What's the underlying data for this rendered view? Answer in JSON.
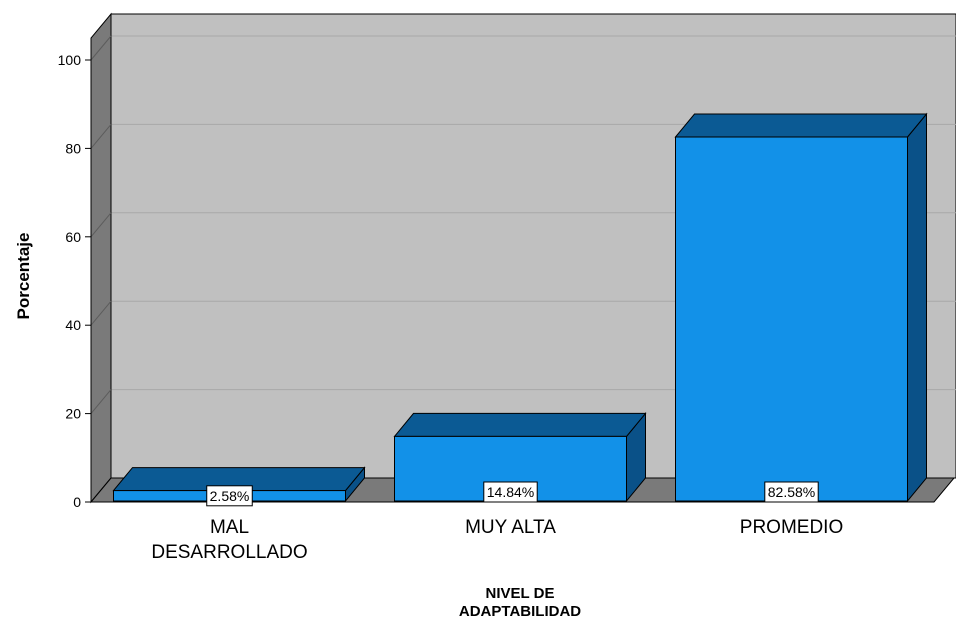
{
  "chart_data": {
    "type": "bar",
    "categories": [
      "MAL DESARROLLADO",
      "MUY ALTA",
      "PROMEDIO"
    ],
    "category_lines": [
      [
        "MAL",
        "DESARROLLADO"
      ],
      [
        "MUY ALTA"
      ],
      [
        "PROMEDIO"
      ]
    ],
    "values": [
      2.58,
      14.84,
      82.58
    ],
    "data_labels": [
      "2.58%",
      "14.84%",
      "82.58%"
    ],
    "ylabel": "Porcentaje",
    "xlabel_lines": [
      "NIVEL DE",
      "ADAPTABILIDAD"
    ],
    "ylim": [
      0,
      100
    ],
    "yticks": [
      0,
      20,
      40,
      60,
      80,
      100
    ],
    "grid": true,
    "colors": {
      "bar_front": "#1291E8",
      "bar_top": "#0B5A94",
      "bar_side": "#0A5188",
      "plot_back": "#C0C0C0",
      "floor": "#7A7A7A",
      "left_wall": "#7A7A7A",
      "gridline": "#A8A8A8"
    }
  }
}
